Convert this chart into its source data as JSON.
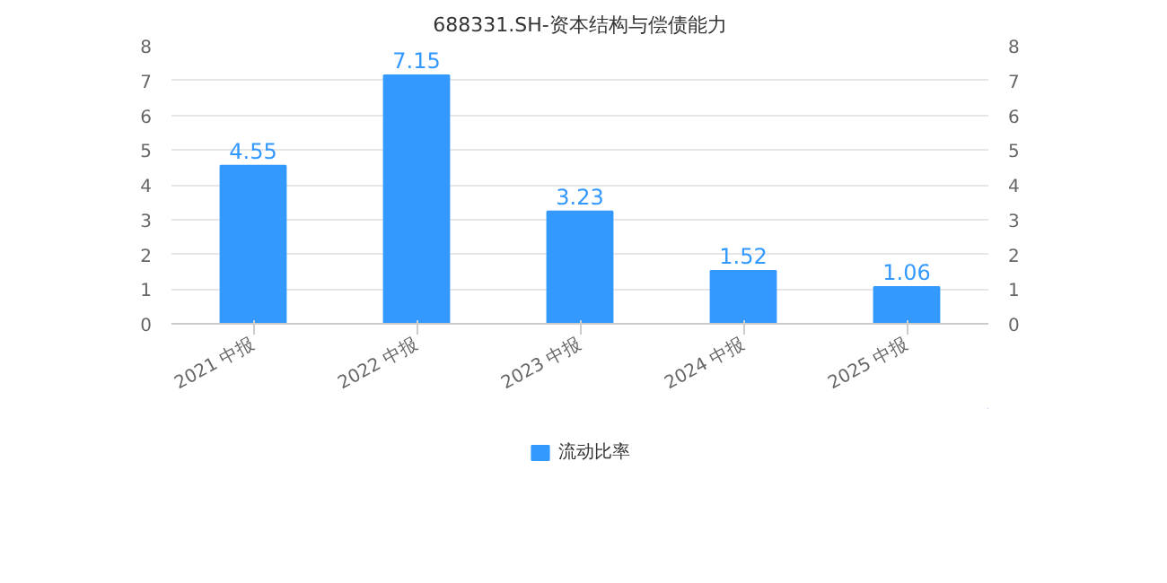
{
  "chart_data": {
    "type": "bar",
    "title": "688331.SH-资本结构与偿债能力",
    "categories": [
      "2021 中报",
      "2022 中报",
      "2023 中报",
      "2024 中报",
      "2025 中报"
    ],
    "series": [
      {
        "name": "流动比率",
        "color": "#3399ff",
        "values": [
          4.55,
          7.15,
          3.23,
          1.52,
          1.06
        ]
      }
    ],
    "ylim": [
      0,
      8
    ],
    "yticks": [
      0,
      1,
      2,
      3,
      4,
      5,
      6,
      7,
      8
    ],
    "y2lim": [
      0,
      8
    ],
    "y2ticks": [
      0,
      1,
      2,
      3,
      4,
      5,
      6,
      7,
      8
    ],
    "data_labels": true,
    "grid": "y",
    "legend": "bottom"
  }
}
